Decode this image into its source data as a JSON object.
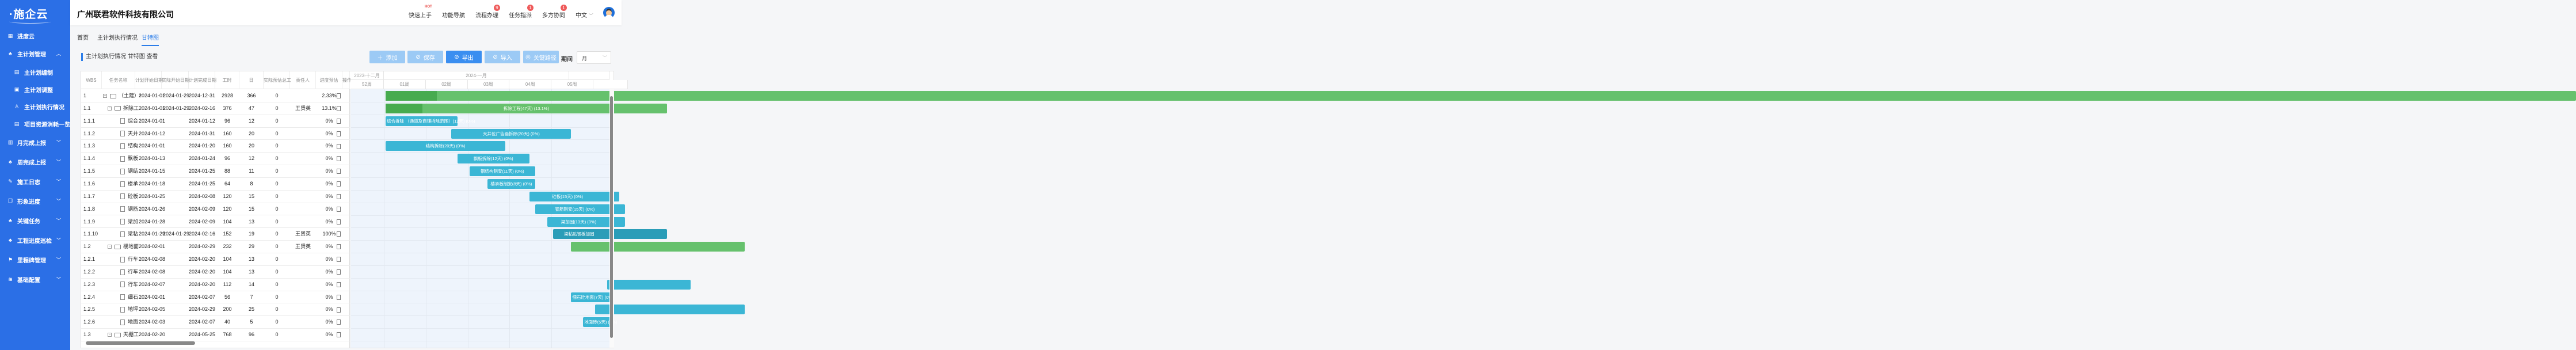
{
  "brand": {
    "logo": "·施企云"
  },
  "sidebar": {
    "items": [
      {
        "label": "进度云",
        "icon": "grid-icon",
        "sub": false,
        "chev": ""
      },
      {
        "label": "主计划管理",
        "icon": "org-icon",
        "sub": false,
        "chev": "^"
      },
      {
        "label": "主计划编制",
        "icon": "doc-icon",
        "sub": true,
        "chev": ""
      },
      {
        "label": "主计划调整",
        "icon": "adjust-icon",
        "sub": true,
        "chev": ""
      },
      {
        "label": "主计划执行情况",
        "icon": "user-icon",
        "sub": true,
        "chev": ""
      },
      {
        "label": "项目资源消耗一览",
        "icon": "doc-icon",
        "sub": true,
        "chev": ""
      },
      {
        "label": "月完成上报",
        "icon": "clipboard-icon",
        "sub": false,
        "chev": "v"
      },
      {
        "label": "周完成上报",
        "icon": "org-icon",
        "sub": false,
        "chev": "v"
      },
      {
        "label": "施工日志",
        "icon": "log-icon",
        "sub": false,
        "chev": "v"
      },
      {
        "label": "形象进度",
        "icon": "copy-icon",
        "sub": false,
        "chev": "v"
      },
      {
        "label": "关键任务",
        "icon": "org-icon",
        "sub": false,
        "chev": "v"
      },
      {
        "label": "工程进度巡检",
        "icon": "org-icon",
        "sub": false,
        "chev": "v"
      },
      {
        "label": "里程碑管理",
        "icon": "milestone-icon",
        "sub": false,
        "chev": "v"
      },
      {
        "label": "基础配置",
        "icon": "layers-icon",
        "sub": false,
        "chev": "v"
      }
    ]
  },
  "header": {
    "company": "广州联君软件科技有限公司",
    "nav": [
      {
        "label": "快速上手",
        "badge": "",
        "hot": "HOT"
      },
      {
        "label": "功能导航",
        "badge": "",
        "hot": ""
      },
      {
        "label": "流程办理",
        "badge": "9",
        "hot": ""
      },
      {
        "label": "任务指派",
        "badge": "1",
        "hot": ""
      },
      {
        "label": "多方协同",
        "badge": "1",
        "hot": ""
      }
    ],
    "lang": "中文"
  },
  "tabs": [
    "首页",
    "主计划执行情况",
    "甘特图"
  ],
  "page_title": "主计划执行情况 甘特图 查看",
  "toolbar": {
    "add": "添加",
    "save": "保存",
    "export": "导出",
    "import": "导入",
    "critical": "关键路径",
    "period_label": "期间",
    "period_value": "月"
  },
  "colors": {
    "sidebar": "#2b6fe6",
    "accent": "#2b7de9",
    "parent_bar": "#66c16d",
    "parent_progress": "#47ab4f",
    "task_bar": "#3bb6d5",
    "done_bar": "#2a9db8"
  },
  "grid": {
    "columns": [
      "WBS",
      "任务名称",
      "计划开始日期",
      "实际开始日期",
      "计划完成日期",
      "工时",
      "日",
      "实际预估总工",
      "责任人",
      "进度预估",
      "操作"
    ],
    "rows": [
      {
        "wbs": "1",
        "name": "（土建）I",
        "level": 0,
        "type": "folder",
        "ps": "2024-01-01",
        "as": "2024-01-29",
        "pe": "2024-12-31",
        "hours": "2928",
        "days": "366",
        "est": "0",
        "owner": "",
        "progress": "2.33%",
        "bar": ""
      },
      {
        "wbs": "1.1",
        "name": "拆除工",
        "level": 1,
        "type": "folder",
        "ps": "2024-01-01",
        "as": "2024-01-29",
        "pe": "2024-02-16",
        "hours": "376",
        "days": "47",
        "est": "0",
        "owner": "王贤英",
        "progress": "13.1%",
        "bar": "拆除工程(47天) (13.1%)"
      },
      {
        "wbs": "1.1.1",
        "name": "综合",
        "level": 2,
        "type": "file",
        "ps": "2024-01-01",
        "as": "",
        "pe": "2024-01-12",
        "hours": "96",
        "days": "12",
        "est": "0",
        "owner": "",
        "progress": "0%",
        "bar": "综合拆除 （通道及商铺拆除范围）(12天) (0%)"
      },
      {
        "wbs": "1.1.2",
        "name": "天井",
        "level": 2,
        "type": "file",
        "ps": "2024-01-12",
        "as": "",
        "pe": "2024-01-31",
        "hours": "160",
        "days": "20",
        "est": "0",
        "owner": "",
        "progress": "0%",
        "bar": "天井位广告画拆除(20天) (0%)"
      },
      {
        "wbs": "1.1.3",
        "name": "结构",
        "level": 2,
        "type": "file",
        "ps": "2024-01-01",
        "as": "",
        "pe": "2024-01-20",
        "hours": "160",
        "days": "20",
        "est": "0",
        "owner": "",
        "progress": "0%",
        "bar": "结构拆除(20天) (0%)"
      },
      {
        "wbs": "1.1.4",
        "name": "飘板",
        "level": 2,
        "type": "file",
        "ps": "2024-01-13",
        "as": "",
        "pe": "2024-01-24",
        "hours": "96",
        "days": "12",
        "est": "0",
        "owner": "",
        "progress": "0%",
        "bar": "飘板拆除(12天) (0%)"
      },
      {
        "wbs": "1.1.5",
        "name": "钢结",
        "level": 2,
        "type": "file",
        "ps": "2024-01-15",
        "as": "",
        "pe": "2024-01-25",
        "hours": "88",
        "days": "11",
        "est": "0",
        "owner": "",
        "progress": "0%",
        "bar": "钢结构制安(11天) (0%)"
      },
      {
        "wbs": "1.1.6",
        "name": "楼承",
        "level": 2,
        "type": "file",
        "ps": "2024-01-18",
        "as": "",
        "pe": "2024-01-25",
        "hours": "64",
        "days": "8",
        "est": "0",
        "owner": "",
        "progress": "0%",
        "bar": "楼承板制安(8天) (0%)"
      },
      {
        "wbs": "1.1.7",
        "name": "砼板",
        "level": 2,
        "type": "file",
        "ps": "2024-01-25",
        "as": "",
        "pe": "2024-02-08",
        "hours": "120",
        "days": "15",
        "est": "0",
        "owner": "",
        "progress": "0%",
        "bar": "砼板(15天) (0%)"
      },
      {
        "wbs": "1.1.8",
        "name": "钢筋",
        "level": 2,
        "type": "file",
        "ps": "2024-01-26",
        "as": "",
        "pe": "2024-02-09",
        "hours": "120",
        "days": "15",
        "est": "0",
        "owner": "",
        "progress": "0%",
        "bar": "钢筋制安(15天) (0%)"
      },
      {
        "wbs": "1.1.9",
        "name": "梁加",
        "level": 2,
        "type": "file",
        "ps": "2024-01-28",
        "as": "",
        "pe": "2024-02-09",
        "hours": "104",
        "days": "13",
        "est": "0",
        "owner": "",
        "progress": "0%",
        "bar": "梁加固(13天) (0%)"
      },
      {
        "wbs": "1.1.10",
        "name": "梁粘",
        "level": 2,
        "type": "file",
        "ps": "2024-01-29",
        "as": "2024-01-29",
        "pe": "2024-02-16",
        "hours": "152",
        "days": "19",
        "est": "0",
        "owner": "王贤英",
        "progress": "100%",
        "bar": "梁粘贴钢板加固"
      },
      {
        "wbs": "1.2",
        "name": "楼地面.",
        "level": 1,
        "type": "folder",
        "ps": "2024-02-01",
        "as": "",
        "pe": "2024-02-29",
        "hours": "232",
        "days": "29",
        "est": "0",
        "owner": "王贤英",
        "progress": "0%",
        "bar": ""
      },
      {
        "wbs": "1.2.1",
        "name": "行车",
        "level": 2,
        "type": "file",
        "ps": "2024-02-08",
        "as": "",
        "pe": "2024-02-20",
        "hours": "104",
        "days": "13",
        "est": "0",
        "owner": "",
        "progress": "0%",
        "bar": ""
      },
      {
        "wbs": "1.2.2",
        "name": "行车",
        "level": 2,
        "type": "file",
        "ps": "2024-02-08",
        "as": "",
        "pe": "2024-02-20",
        "hours": "104",
        "days": "13",
        "est": "0",
        "owner": "",
        "progress": "0%",
        "bar": ""
      },
      {
        "wbs": "1.2.3",
        "name": "行车",
        "level": 2,
        "type": "file",
        "ps": "2024-02-07",
        "as": "",
        "pe": "2024-02-20",
        "hours": "112",
        "days": "14",
        "est": "0",
        "owner": "",
        "progress": "0%",
        "bar": ""
      },
      {
        "wbs": "1.2.4",
        "name": "细石",
        "level": 2,
        "type": "file",
        "ps": "2024-02-01",
        "as": "",
        "pe": "2024-02-07",
        "hours": "56",
        "days": "7",
        "est": "0",
        "owner": "",
        "progress": "0%",
        "bar": "细石砼地面(7天) (0%)"
      },
      {
        "wbs": "1.2.5",
        "name": "地坪",
        "level": 2,
        "type": "file",
        "ps": "2024-02-05",
        "as": "",
        "pe": "2024-02-29",
        "hours": "200",
        "days": "25",
        "est": "0",
        "owner": "",
        "progress": "0%",
        "bar": ""
      },
      {
        "wbs": "1.2.6",
        "name": "地面",
        "level": 2,
        "type": "file",
        "ps": "2024-02-03",
        "as": "",
        "pe": "2024-02-07",
        "hours": "40",
        "days": "5",
        "est": "0",
        "owner": "",
        "progress": "0%",
        "bar": "地面砖(5天) (0%)"
      },
      {
        "wbs": "1.3",
        "name": "天棚工",
        "level": 1,
        "type": "folder",
        "ps": "2024-02-20",
        "as": "",
        "pe": "2024-05-25",
        "hours": "768",
        "days": "96",
        "est": "0",
        "owner": "",
        "progress": "0%",
        "bar": ""
      }
    ]
  },
  "gantt": {
    "months": [
      "2023-十二月",
      "2024-一月"
    ],
    "weeks": [
      "52周",
      "01周",
      "02周",
      "03周",
      "04周",
      "05周"
    ]
  }
}
